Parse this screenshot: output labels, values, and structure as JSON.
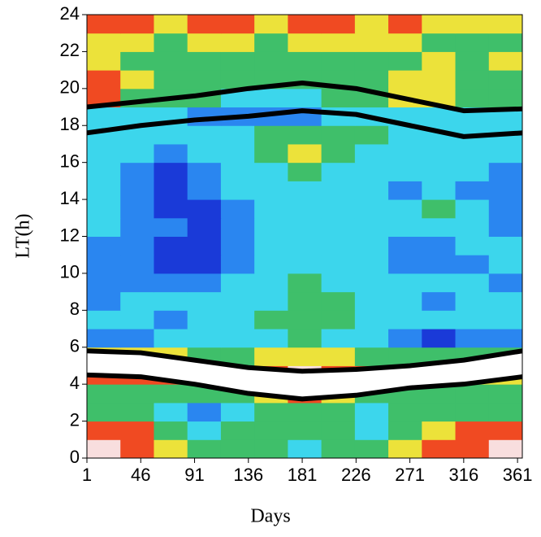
{
  "chart_data": {
    "type": "heatmap",
    "xlabel": "Days",
    "ylabel": "LT(h)",
    "xlim": [
      1,
      365
    ],
    "ylim": [
      0,
      24
    ],
    "xticks": [
      1,
      46,
      91,
      136,
      181,
      226,
      271,
      316,
      361
    ],
    "yticks": [
      0,
      2,
      4,
      6,
      8,
      10,
      12,
      14,
      16,
      18,
      20,
      22,
      24
    ],
    "colors": [
      "#1a3ad8",
      "#2a86f0",
      "#3cd6ec",
      "#3fbf6a",
      "#ece23a",
      "#f04a22",
      "#f8dede"
    ],
    "z": [
      [
        6,
        5,
        4,
        3,
        3,
        3,
        2,
        3,
        3,
        4,
        5,
        5,
        6
      ],
      [
        5,
        5,
        3,
        2,
        3,
        3,
        3,
        3,
        2,
        3,
        4,
        5,
        5
      ],
      [
        3,
        3,
        2,
        1,
        2,
        3,
        3,
        3,
        2,
        3,
        3,
        3,
        3
      ],
      [
        3,
        3,
        3,
        3,
        3,
        4,
        5,
        4,
        3,
        3,
        3,
        3,
        3
      ],
      [
        5,
        5,
        5,
        5,
        6,
        5,
        6,
        5,
        5,
        5,
        5,
        4,
        4
      ],
      [
        4,
        4,
        4,
        3,
        3,
        4,
        4,
        4,
        3,
        3,
        3,
        3,
        3
      ],
      [
        1,
        1,
        2,
        2,
        2,
        2,
        3,
        2,
        2,
        1,
        0,
        1,
        1
      ],
      [
        2,
        2,
        1,
        2,
        2,
        3,
        3,
        3,
        2,
        2,
        2,
        2,
        2
      ],
      [
        1,
        2,
        2,
        2,
        2,
        2,
        3,
        3,
        2,
        2,
        1,
        2,
        2
      ],
      [
        1,
        1,
        1,
        1,
        2,
        2,
        3,
        2,
        2,
        2,
        2,
        2,
        1
      ],
      [
        1,
        1,
        0,
        0,
        1,
        2,
        2,
        2,
        2,
        1,
        1,
        1,
        2
      ],
      [
        1,
        1,
        0,
        0,
        1,
        2,
        2,
        2,
        2,
        1,
        1,
        2,
        2
      ],
      [
        2,
        1,
        1,
        0,
        1,
        2,
        2,
        2,
        2,
        2,
        2,
        2,
        1
      ],
      [
        2,
        1,
        0,
        0,
        1,
        2,
        2,
        2,
        2,
        2,
        3,
        2,
        1
      ],
      [
        2,
        1,
        0,
        1,
        2,
        2,
        2,
        2,
        2,
        1,
        2,
        1,
        1
      ],
      [
        2,
        1,
        0,
        1,
        2,
        2,
        3,
        2,
        2,
        2,
        2,
        2,
        1
      ],
      [
        2,
        2,
        1,
        2,
        2,
        3,
        4,
        3,
        2,
        2,
        2,
        2,
        2
      ],
      [
        2,
        2,
        2,
        2,
        2,
        3,
        3,
        3,
        3,
        2,
        2,
        2,
        2
      ],
      [
        2,
        2,
        2,
        1,
        1,
        1,
        1,
        2,
        2,
        2,
        2,
        2,
        2
      ],
      [
        5,
        3,
        3,
        3,
        2,
        2,
        2,
        3,
        3,
        4,
        4,
        3,
        3
      ],
      [
        5,
        4,
        3,
        3,
        3,
        3,
        3,
        3,
        3,
        4,
        4,
        3,
        3
      ],
      [
        4,
        3,
        3,
        3,
        3,
        3,
        3,
        3,
        3,
        3,
        4,
        3,
        4
      ],
      [
        4,
        4,
        3,
        4,
        4,
        3,
        4,
        4,
        4,
        4,
        3,
        3,
        3
      ],
      [
        5,
        5,
        4,
        5,
        5,
        4,
        5,
        5,
        4,
        5,
        4,
        4,
        4
      ]
    ],
    "x": [
      1,
      46,
      91,
      136,
      181,
      226,
      271,
      316,
      365
    ],
    "series": [
      {
        "color": "#000000",
        "values": [
          19.0,
          19.3,
          19.6,
          20.0,
          20.3,
          20.0,
          19.4,
          18.8,
          18.9
        ]
      },
      {
        "color": "#000000",
        "values": [
          17.6,
          18.0,
          18.3,
          18.5,
          18.8,
          18.6,
          18.0,
          17.4,
          17.6
        ]
      },
      {
        "color": "#000000",
        "values": [
          5.8,
          5.7,
          5.3,
          4.9,
          4.7,
          4.8,
          5.0,
          5.3,
          5.8
        ]
      },
      {
        "color": "#000000",
        "values": [
          4.5,
          4.4,
          4.0,
          3.5,
          3.2,
          3.4,
          3.8,
          4.0,
          4.4
        ]
      }
    ]
  }
}
